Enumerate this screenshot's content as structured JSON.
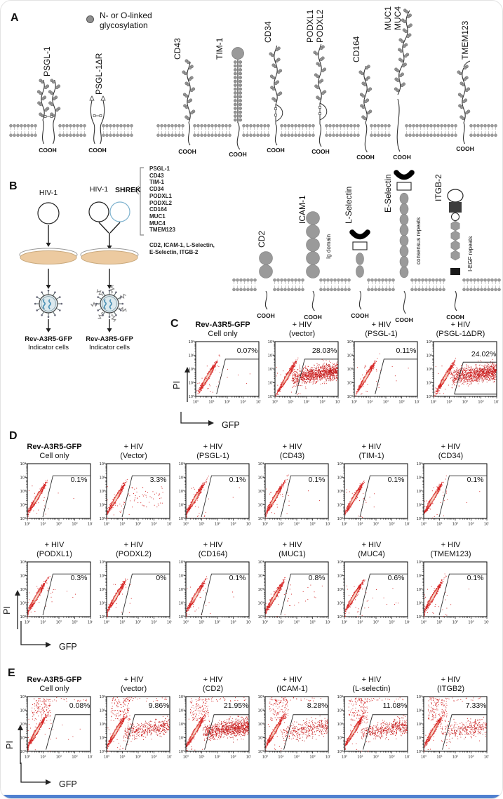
{
  "panel_a": {
    "label": "A",
    "legend": {
      "line1": "N- or O-linked",
      "line2": "glycosylation"
    },
    "cooh": "COOH",
    "protein_labels": [
      "PSGL-1",
      "PSGL-1ΔR",
      "CD43",
      "TIM-1",
      "CD34",
      "PODXL1",
      "PODXL2",
      "CD164",
      "MUC1",
      "MUC4",
      "TMEM123"
    ]
  },
  "panel_b": {
    "label": "B",
    "hiv_label_left": "HIV-1",
    "hiv_label_right": "HIV-1",
    "shrek_label": "SHREK",
    "shrek_list": [
      "PSGL-1",
      "CD43",
      "TIM-1",
      "CD34",
      "PODXL1",
      "PODXL2",
      "CD164",
      "MUC1",
      "MUC4",
      "TMEM123"
    ],
    "adhesion_line1": "CD2, ICAM-1, L-Selectin,",
    "adhesion_line2": "E-Selectin, ITGB-2",
    "indicator_line1": "Rev-A3R5-GFP",
    "indicator_line2": "Indicator cells",
    "cooh": "COOH",
    "right_protein_labels": [
      "CD2",
      "ICAM-1",
      "L-Selectin",
      "E-Selectin",
      "ITGB-2"
    ],
    "annotations": {
      "icam": "Ig domain",
      "eselectin": "consensus repeats",
      "itgb": "I-EGF repeats"
    }
  },
  "flow_axis": {
    "ylabel": "PI",
    "xlabel": "GFP",
    "ticks": [
      "10⁰",
      "10¹",
      "10²",
      "10³",
      "10⁴"
    ]
  },
  "panel_c": {
    "label": "C",
    "plots": [
      {
        "title1": "Rev-A3R5-GFP",
        "title2": "Cell only",
        "bold": true,
        "percent": "0.07%"
      },
      {
        "title1": "+ HIV",
        "title2": "(vector)",
        "percent": "28.03%"
      },
      {
        "title1": "+ HIV",
        "title2": "(PSGL-1)",
        "percent": "0.11%"
      },
      {
        "title1": "+ HIV",
        "title2": "(PSGL-1ΔDR)",
        "percent": "24.02%"
      }
    ]
  },
  "panel_d": {
    "label": "D",
    "row1": [
      {
        "title1": "Rev-A3R5-GFP",
        "title2": "Cell only",
        "bold": true,
        "percent": "0.1%"
      },
      {
        "title1": "+ HIV",
        "title2": "(Vector)",
        "percent": "3.3%"
      },
      {
        "title1": "+ HIV",
        "title2": "(PSGL-1)",
        "percent": "0.1%"
      },
      {
        "title1": "+ HIV",
        "title2": "(CD43)",
        "percent": "0.1%"
      },
      {
        "title1": "+ HIV",
        "title2": "(TIM-1)",
        "percent": "0.1%"
      },
      {
        "title1": "+ HIV",
        "title2": "(CD34)",
        "percent": "0.1%"
      }
    ],
    "row2": [
      {
        "title1": "+ HIV",
        "title2": "(PODXL1)",
        "percent": "0.3%"
      },
      {
        "title1": "+ HIV",
        "title2": "(PODXL2)",
        "percent": "0%"
      },
      {
        "title1": "+ HIV",
        "title2": "(CD164)",
        "percent": "0.1%"
      },
      {
        "title1": "+ HIV",
        "title2": "(MUC1)",
        "percent": "0.8%"
      },
      {
        "title1": "+ HIV",
        "title2": "(MUC4)",
        "percent": "0.6%"
      },
      {
        "title1": "+ HIV",
        "title2": "(TMEM123)",
        "percent": "0.1%"
      }
    ]
  },
  "panel_e": {
    "label": "E",
    "plots": [
      {
        "title1": "Rev-A3R5-GFP",
        "title2": "Cell only",
        "bold": true,
        "percent": "0.08%"
      },
      {
        "title1": "+ HIV",
        "title2": "(vector)",
        "percent": "9.86%"
      },
      {
        "title1": "+ HIV",
        "title2": "(CD2)",
        "percent": "21.95%"
      },
      {
        "title1": "+ HIV",
        "title2": "(ICAM-1)",
        "percent": "8.28%"
      },
      {
        "title1": "+ HIV",
        "title2": "(L-selectin)",
        "percent": "11.08%"
      },
      {
        "title1": "+ HIV",
        "title2": "(ITGB2)",
        "percent": "7.33%"
      }
    ]
  },
  "colors": {
    "scatter_red": "#d42222",
    "petri_tan": "#eccaa0",
    "virus_fill": "#dce9ee",
    "virus_rna_blue": "#4a90b5",
    "membrane_gray": "#9d9d9d",
    "bottom_bar": "#4f80d0"
  },
  "chart_data": [
    {
      "type": "scatter",
      "panel": "C",
      "xlabel": "GFP",
      "ylabel": "PI",
      "x_scale": "log10, decades 0-4",
      "y_scale": "log10, decades 0-4",
      "series": [
        {
          "name": "Cell only",
          "gate_percent": 0.07
        },
        {
          "name": "+ HIV (vector)",
          "gate_percent": 28.03
        },
        {
          "name": "+ HIV (PSGL-1)",
          "gate_percent": 0.11
        },
        {
          "name": "+ HIV (PSGL-1ΔDR)",
          "gate_percent": 24.02
        }
      ]
    },
    {
      "type": "scatter",
      "panel": "D",
      "xlabel": "GFP",
      "ylabel": "PI",
      "x_scale": "log10, decades 0-4",
      "y_scale": "log10, decades 0-4",
      "series": [
        {
          "name": "Cell only",
          "gate_percent": 0.1
        },
        {
          "name": "+ HIV (Vector)",
          "gate_percent": 3.3
        },
        {
          "name": "+ HIV (PSGL-1)",
          "gate_percent": 0.1
        },
        {
          "name": "+ HIV (CD43)",
          "gate_percent": 0.1
        },
        {
          "name": "+ HIV (TIM-1)",
          "gate_percent": 0.1
        },
        {
          "name": "+ HIV (CD34)",
          "gate_percent": 0.1
        },
        {
          "name": "+ HIV (PODXL1)",
          "gate_percent": 0.3
        },
        {
          "name": "+ HIV (PODXL2)",
          "gate_percent": 0
        },
        {
          "name": "+ HIV (CD164)",
          "gate_percent": 0.1
        },
        {
          "name": "+ HIV (MUC1)",
          "gate_percent": 0.8
        },
        {
          "name": "+ HIV (MUC4)",
          "gate_percent": 0.6
        },
        {
          "name": "+ HIV (TMEM123)",
          "gate_percent": 0.1
        }
      ]
    },
    {
      "type": "scatter",
      "panel": "E",
      "xlabel": "GFP",
      "ylabel": "PI",
      "x_scale": "log10, decades 0-4",
      "y_scale": "log10, decades 0-4",
      "series": [
        {
          "name": "Cell only",
          "gate_percent": 0.08
        },
        {
          "name": "+ HIV (vector)",
          "gate_percent": 9.86
        },
        {
          "name": "+ HIV (CD2)",
          "gate_percent": 21.95
        },
        {
          "name": "+ HIV (ICAM-1)",
          "gate_percent": 8.28
        },
        {
          "name": "+ HIV (L-selectin)",
          "gate_percent": 11.08
        },
        {
          "name": "+ HIV (ITGB2)",
          "gate_percent": 7.33
        }
      ]
    }
  ]
}
